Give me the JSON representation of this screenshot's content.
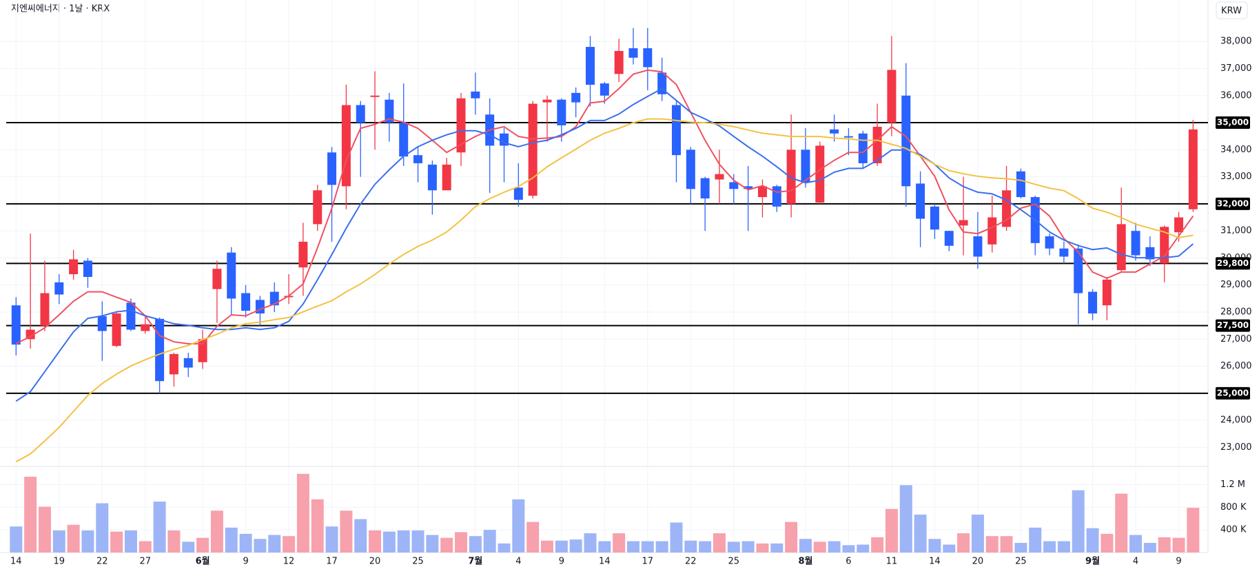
{
  "chart_data": {
    "type": "candlestick",
    "title": "지엔씨에너지 · 1날 · KRX",
    "currency": "KRW",
    "categories": [
      "14",
      null,
      null,
      "19",
      null,
      null,
      "22",
      null,
      null,
      "27",
      null,
      null,
      null,
      "6월",
      null,
      null,
      "9",
      null,
      null,
      "12",
      null,
      null,
      "17",
      null,
      null,
      "20",
      null,
      null,
      "25",
      null,
      null,
      null,
      "7월",
      null,
      null,
      "4",
      null,
      null,
      "9",
      null,
      null,
      "14",
      null,
      null,
      "17",
      null,
      null,
      "22",
      null,
      null,
      "25",
      null,
      null,
      null,
      null,
      "8월",
      null,
      null,
      "6",
      null,
      null,
      "11",
      null,
      null,
      "14",
      null,
      null,
      "20",
      null,
      null,
      "25",
      null,
      null,
      null,
      null,
      "9월",
      null,
      null,
      "4",
      null,
      null,
      "9",
      null
    ],
    "open": [
      28250,
      27000,
      27500,
      29100,
      29400,
      29900,
      27850,
      26750,
      28350,
      27300,
      27750,
      25700,
      26300,
      26150,
      28850,
      30200,
      28700,
      28450,
      28750,
      28550,
      29650,
      31250,
      33900,
      32650,
      35650,
      35950,
      35850,
      35000,
      33800,
      33450,
      32500,
      33900,
      36150,
      35300,
      34600,
      32600,
      32300,
      35750,
      35850,
      36100,
      37800,
      36450,
      36800,
      37750,
      37750,
      36850,
      35650,
      34000,
      32950,
      32900,
      32800,
      32650,
      32250,
      32650,
      32000,
      34000,
      32050,
      34750,
      34500,
      34600,
      33500,
      35000,
      36000,
      32750,
      31900,
      31000,
      31200,
      30800,
      30500,
      31150,
      33200,
      32250,
      30800,
      30350,
      30350,
      28750,
      28250,
      29550,
      31000,
      30400,
      29800,
      30950,
      31800
    ],
    "high": [
      28550,
      30900,
      29900,
      29400,
      30300,
      30000,
      28400,
      28000,
      28500,
      27900,
      27800,
      26500,
      26500,
      27350,
      29900,
      30400,
      29000,
      28600,
      29100,
      29400,
      31300,
      32700,
      34100,
      36400,
      35800,
      36900,
      36100,
      36450,
      34100,
      33600,
      33700,
      36100,
      36850,
      35900,
      34800,
      33500,
      35800,
      36000,
      35900,
      36300,
      38200,
      36500,
      38100,
      38500,
      38500,
      37400,
      35800,
      34100,
      33000,
      34000,
      33100,
      33400,
      32900,
      32700,
      35300,
      34800,
      34300,
      35300,
      34800,
      34700,
      35700,
      38200,
      37200,
      33200,
      32000,
      31000,
      33000,
      31700,
      32300,
      33400,
      33300,
      32300,
      30900,
      30600,
      30500,
      28850,
      29300,
      32600,
      31300,
      30800,
      31200,
      31700,
      35100
    ],
    "low": [
      26400,
      26650,
      27300,
      28300,
      29200,
      28900,
      26200,
      26700,
      27300,
      27200,
      25000,
      25250,
      25600,
      25900,
      27600,
      27900,
      27800,
      27500,
      28000,
      28300,
      28600,
      31000,
      30600,
      31800,
      33000,
      34000,
      34300,
      33400,
      32800,
      31600,
      32500,
      33400,
      35300,
      32400,
      32800,
      31900,
      32200,
      34300,
      34300,
      35200,
      35600,
      35700,
      36500,
      37150,
      36200,
      35800,
      32800,
      32000,
      31000,
      32000,
      32000,
      31000,
      31500,
      31700,
      31500,
      32600,
      32000,
      34300,
      33800,
      33300,
      33400,
      34500,
      31900,
      30400,
      30700,
      30250,
      30100,
      29600,
      30200,
      31000,
      32200,
      30100,
      30100,
      29800,
      27550,
      27700,
      27700,
      29500,
      29900,
      29700,
      29100,
      30600,
      31700
    ],
    "close": [
      26800,
      27350,
      28700,
      28650,
      29950,
      29300,
      27300,
      27950,
      27350,
      27550,
      25450,
      26450,
      25950,
      27000,
      29600,
      28500,
      28050,
      27950,
      28250,
      28600,
      30600,
      32500,
      32700,
      35650,
      35000,
      36000,
      35000,
      33750,
      33500,
      32500,
      33450,
      35900,
      35900,
      34150,
      34150,
      32150,
      35700,
      35850,
      34900,
      35750,
      36400,
      36000,
      37650,
      37400,
      37050,
      36050,
      33800,
      32550,
      32200,
      33100,
      32550,
      32550,
      32650,
      31900,
      34000,
      32800,
      34150,
      34600,
      34450,
      33500,
      34850,
      36950,
      32650,
      31450,
      31050,
      30450,
      31400,
      30050,
      31500,
      32500,
      32250,
      30550,
      30350,
      30050,
      28700,
      27950,
      29200,
      31250,
      30100,
      29950,
      31150,
      31500,
      34750
    ],
    "up_color": "#f23645",
    "down_color": "#2962ff",
    "ylim": [
      22400,
      39100
    ],
    "yticks": [
      {
        "value": 23000,
        "label": "23,000"
      },
      {
        "value": 24000,
        "label": "24,000"
      },
      {
        "value": 26000,
        "label": "26,000"
      },
      {
        "value": 27000,
        "label": "27,000"
      },
      {
        "value": 28000,
        "label": "28,000"
      },
      {
        "value": 29000,
        "label": "29,000"
      },
      {
        "value": 30000,
        "label": "30,000"
      },
      {
        "value": 31000,
        "label": "31,000"
      },
      {
        "value": 33000,
        "label": "33,000"
      },
      {
        "value": 34000,
        "label": "34,000"
      },
      {
        "value": 36000,
        "label": "36,000"
      },
      {
        "value": 37000,
        "label": "37,000"
      },
      {
        "value": 38000,
        "label": "38,000"
      }
    ],
    "grid": true,
    "levels": [
      {
        "value": 35000,
        "label": "35,000"
      },
      {
        "value": 32000,
        "label": "32,000"
      },
      {
        "value": 29800,
        "label": "29,800"
      },
      {
        "value": 27500,
        "label": "27,500"
      },
      {
        "value": 25000,
        "label": "25,000"
      }
    ],
    "level_color": "#000000",
    "moving_averages": [
      {
        "color": "#f0505f",
        "values": [
          26830,
          27100,
          27420,
          27900,
          28400,
          28750,
          28750,
          28550,
          28360,
          27860,
          27130,
          26900,
          26830,
          26830,
          27480,
          27900,
          27860,
          28100,
          28300,
          28600,
          29040,
          30370,
          31840,
          33610,
          34790,
          34940,
          35140,
          35020,
          34790,
          34350,
          33900,
          34200,
          34490,
          34730,
          34850,
          34490,
          34400,
          34430,
          34490,
          34850,
          35730,
          35790,
          36260,
          36790,
          36940,
          36880,
          36410,
          35380,
          34350,
          33460,
          32870,
          32520,
          32670,
          32430,
          32490,
          32870,
          33260,
          33610,
          33900,
          33900,
          34350,
          34850,
          34490,
          33760,
          33020,
          31780,
          30960,
          30900,
          31130,
          31400,
          31840,
          31990,
          31550,
          30720,
          30220,
          29480,
          29250,
          29480,
          29480,
          29780,
          30070,
          30810,
          31550
        ]
      },
      {
        "color": "#3a6ef0",
        "values": [
          24710,
          25060,
          25800,
          26540,
          27270,
          27770,
          27860,
          28010,
          28070,
          27860,
          27720,
          27570,
          27510,
          27420,
          27360,
          27360,
          27420,
          27360,
          27420,
          27660,
          28300,
          29190,
          30130,
          31100,
          31990,
          32720,
          33260,
          33760,
          34110,
          34350,
          34550,
          34700,
          34700,
          34550,
          34260,
          34110,
          34260,
          34350,
          34550,
          34790,
          35080,
          35080,
          35320,
          35670,
          35970,
          36260,
          35820,
          35380,
          35140,
          34880,
          34490,
          34110,
          33760,
          33370,
          32960,
          32780,
          32870,
          33170,
          33310,
          33310,
          33610,
          33990,
          33990,
          33820,
          33460,
          32960,
          32640,
          32430,
          32370,
          32140,
          31780,
          31400,
          30960,
          30660,
          30460,
          30310,
          30370,
          30130,
          30010,
          30010,
          30010,
          30070,
          30520
        ]
      },
      {
        "color": "#f4c142",
        "values": [
          22470,
          22760,
          23240,
          23740,
          24330,
          24920,
          25360,
          25710,
          26010,
          26240,
          26450,
          26620,
          26770,
          26980,
          27180,
          27420,
          27570,
          27630,
          27720,
          27800,
          28010,
          28220,
          28420,
          28750,
          29040,
          29390,
          29780,
          30130,
          30430,
          30660,
          30960,
          31400,
          31900,
          32190,
          32430,
          32640,
          32960,
          33370,
          33700,
          34020,
          34350,
          34610,
          34790,
          35000,
          35140,
          35140,
          35080,
          35020,
          35000,
          34940,
          34850,
          34730,
          34610,
          34550,
          34490,
          34490,
          34490,
          34430,
          34400,
          34350,
          34350,
          34200,
          34050,
          33760,
          33460,
          33230,
          33110,
          33020,
          32960,
          32930,
          32870,
          32720,
          32580,
          32490,
          32190,
          31840,
          31690,
          31490,
          31250,
          31100,
          30960,
          30750,
          30840
        ]
      }
    ],
    "volume": {
      "values": [
        460000,
        1340000,
        810000,
        390000,
        490000,
        390000,
        870000,
        370000,
        390000,
        200000,
        900000,
        390000,
        190000,
        260000,
        740000,
        440000,
        330000,
        240000,
        310000,
        290000,
        1390000,
        940000,
        460000,
        740000,
        590000,
        390000,
        370000,
        390000,
        390000,
        310000,
        260000,
        360000,
        290000,
        400000,
        160000,
        940000,
        540000,
        210000,
        210000,
        230000,
        340000,
        200000,
        340000,
        200000,
        200000,
        200000,
        530000,
        210000,
        200000,
        340000,
        190000,
        200000,
        160000,
        160000,
        540000,
        240000,
        190000,
        200000,
        130000,
        140000,
        270000,
        770000,
        1190000,
        670000,
        240000,
        140000,
        340000,
        670000,
        290000,
        290000,
        170000,
        440000,
        200000,
        200000,
        1100000,
        430000,
        330000,
        1040000,
        310000,
        170000,
        270000,
        260000,
        790000
      ],
      "up_color": "#f7a1ac",
      "down_color": "#9db5f7",
      "ylim": [
        0,
        1400000
      ],
      "yticks": [
        {
          "value": 400000,
          "label": "400 K"
        },
        {
          "value": 800000,
          "label": "800 K"
        },
        {
          "value": 1200000,
          "label": "1.2 M"
        }
      ]
    }
  }
}
